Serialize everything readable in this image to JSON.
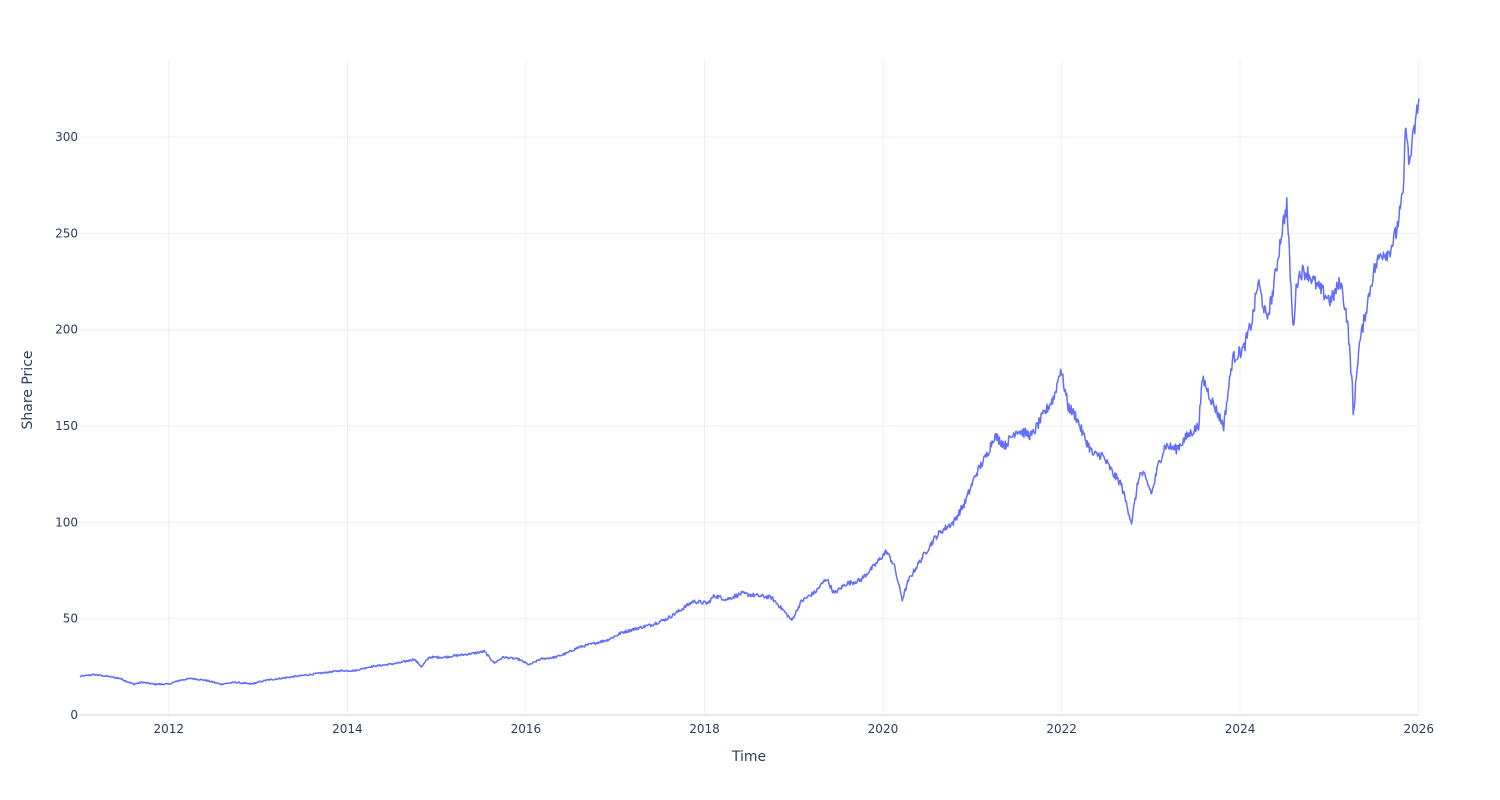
{
  "chart_data": {
    "type": "line",
    "title": "",
    "xlabel": "Time",
    "ylabel": "Share Price",
    "grid": true,
    "legend": "none",
    "xlim": [
      "2011-01-03",
      "2026-01-02"
    ],
    "ylim": [
      0,
      340
    ],
    "x_tick_labels": [
      "2012",
      "2014",
      "2016",
      "2018",
      "2020",
      "2022",
      "2024",
      "2026"
    ],
    "x_ticks": [
      "2012-01-01",
      "2014-01-01",
      "2016-01-01",
      "2018-01-01",
      "2020-01-01",
      "2022-01-01",
      "2024-01-01",
      "2026-01-01"
    ],
    "y_ticks": [
      0,
      50,
      100,
      150,
      200,
      250,
      300
    ],
    "y_tick_labels": [
      "0",
      "50",
      "100",
      "150",
      "200",
      "250",
      "300"
    ],
    "colors": {
      "line": "#636efa",
      "grid": "#ebf0f8",
      "text": "#2a3f5f"
    },
    "series": [
      {
        "x": [
          "2011-01-03",
          "2011-03-01",
          "2011-05-01",
          "2011-06-15",
          "2011-08-10",
          "2011-09-15",
          "2011-11-01",
          "2012-01-01",
          "2012-02-15",
          "2012-04-01",
          "2012-06-01",
          "2012-08-01",
          "2012-10-01",
          "2012-12-01",
          "2013-02-01",
          "2013-04-01",
          "2013-06-01",
          "2013-08-01",
          "2013-10-01",
          "2013-12-01",
          "2014-02-01",
          "2014-04-01",
          "2014-06-01",
          "2014-08-01",
          "2014-10-01",
          "2014-11-01",
          "2014-12-01",
          "2015-02-01",
          "2015-04-01",
          "2015-06-01",
          "2015-07-15",
          "2015-08-25",
          "2015-10-01",
          "2015-12-01",
          "2016-01-15",
          "2016-03-01",
          "2016-05-01",
          "2016-06-15",
          "2016-08-01",
          "2016-10-01",
          "2016-12-01",
          "2017-02-01",
          "2017-04-01",
          "2017-06-01",
          "2017-08-01",
          "2017-10-01",
          "2017-11-15",
          "2018-01-15",
          "2018-02-10",
          "2018-04-01",
          "2018-06-01",
          "2018-08-01",
          "2018-10-01",
          "2018-11-15",
          "2018-12-24",
          "2019-02-01",
          "2019-04-01",
          "2019-05-15",
          "2019-06-15",
          "2019-08-01",
          "2019-10-01",
          "2019-12-01",
          "2020-01-15",
          "2020-02-15",
          "2020-03-20",
          "2020-04-15",
          "2020-06-01",
          "2020-08-01",
          "2020-09-01",
          "2020-10-15",
          "2020-12-01",
          "2021-01-15",
          "2021-03-01",
          "2021-04-01",
          "2021-05-15",
          "2021-07-01",
          "2021-09-01",
          "2021-10-15",
          "2021-12-01",
          "2021-12-28",
          "2022-01-28",
          "2022-03-01",
          "2022-04-01",
          "2022-05-10",
          "2022-06-15",
          "2022-08-01",
          "2022-09-01",
          "2022-10-14",
          "2022-11-15",
          "2022-12-01",
          "2023-01-05",
          "2023-02-01",
          "2023-03-01",
          "2023-04-15",
          "2023-06-01",
          "2023-07-15",
          "2023-08-01",
          "2023-09-01",
          "2023-10-26",
          "2023-12-01",
          "2024-01-15",
          "2024-02-20",
          "2024-03-15",
          "2024-04-19",
          "2024-05-15",
          "2024-06-18",
          "2024-07-10",
          "2024-08-05",
          "2024-08-20",
          "2024-09-06",
          "2024-10-01",
          "2024-11-15",
          "2025-01-06",
          "2025-02-15",
          "2025-03-15",
          "2025-04-04",
          "2025-04-08",
          "2025-04-30",
          "2025-05-30",
          "2025-06-30",
          "2025-07-31",
          "2025-08-31",
          "2025-09-30",
          "2025-10-29",
          "2025-11-10",
          "2025-11-21",
          "2025-12-10",
          "2026-01-02"
        ],
        "y": [
          20,
          21,
          20,
          19,
          16,
          17,
          16,
          16,
          18,
          19,
          18,
          16,
          17,
          16,
          18,
          19,
          20,
          21,
          22,
          23,
          23,
          25,
          26,
          27,
          29,
          25,
          30,
          30,
          31,
          32,
          33,
          27,
          30,
          29,
          26,
          29,
          30,
          32,
          35,
          37,
          39,
          43,
          45,
          47,
          50,
          55,
          59,
          58,
          62,
          60,
          63,
          62,
          61,
          55,
          49,
          59,
          64,
          71,
          63,
          68,
          70,
          78,
          85,
          78,
          60,
          70,
          80,
          92,
          96,
          100,
          110,
          125,
          135,
          145,
          140,
          148,
          145,
          155,
          165,
          180,
          160,
          155,
          145,
          135,
          135,
          125,
          120,
          100,
          125,
          125,
          115,
          130,
          140,
          138,
          145,
          150,
          175,
          165,
          150,
          185,
          190,
          205,
          225,
          205,
          220,
          250,
          265,
          200,
          225,
          230,
          230,
          222,
          215,
          225,
          205,
          170,
          155,
          190,
          210,
          230,
          240,
          240,
          250,
          270,
          310,
          285,
          300,
          320
        ]
      }
    ]
  }
}
